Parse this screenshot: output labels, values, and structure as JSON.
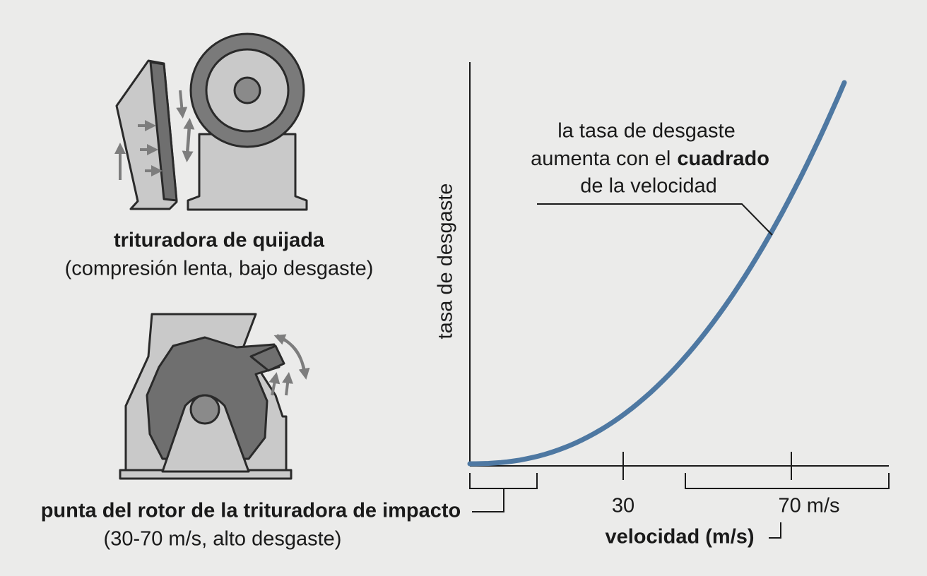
{
  "jaw_crusher": {
    "title": "trituradora de quijada",
    "subtitle": "(compresión lenta, bajo desgaste)"
  },
  "impact_crusher": {
    "title": "punta del rotor de la trituradora de impacto",
    "subtitle": "(30-70 m/s, alto desgaste)"
  },
  "chart": {
    "y_axis_label": "tasa de desgaste",
    "x_axis_label": "velocidad (m/s)",
    "x_tick_labels": [
      "30",
      "70 m/s"
    ],
    "annotation": {
      "line_1": "la tasa de desgaste",
      "line_2": "aumenta con el",
      "emphasis": "cuadrado",
      "line_3": "de la velocidad"
    }
  }
}
